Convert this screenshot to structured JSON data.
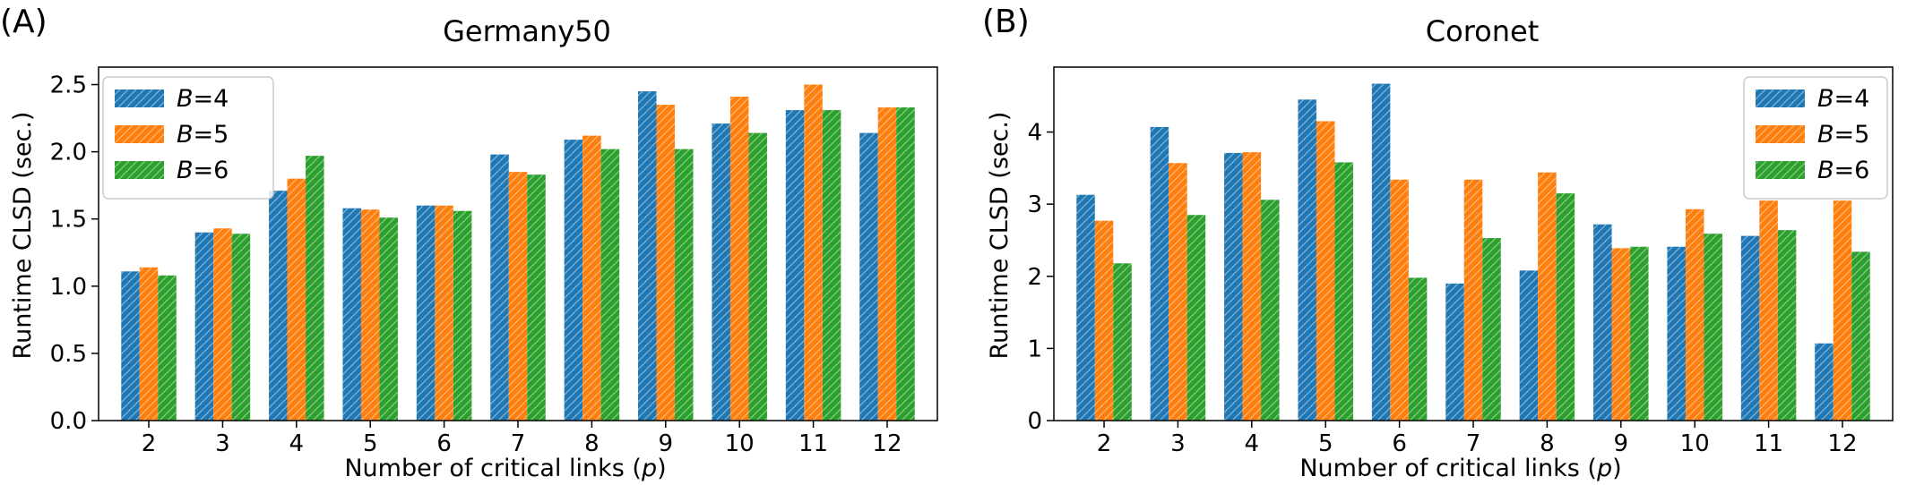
{
  "chart_data": [
    {
      "panel_label": "(A)",
      "type": "bar",
      "title": "Germany50",
      "xlabel": "Number of critical links (",
      "xlabel_var": "p",
      "xlabel_end": ")",
      "ylabel": "Runtime CLSD (sec.)",
      "categories": [
        "2",
        "3",
        "4",
        "5",
        "6",
        "7",
        "8",
        "9",
        "10",
        "11",
        "12"
      ],
      "ylim": [
        0,
        2.63
      ],
      "yticks": [
        0.0,
        0.5,
        1.0,
        1.5,
        2.0,
        2.5
      ],
      "ytick_labels": [
        "0.0",
        "0.5",
        "1.0",
        "1.5",
        "2.0",
        "2.5"
      ],
      "legend_position": "top-left",
      "grid": false,
      "series": [
        {
          "name": "B=4",
          "legend_var": "B",
          "legend_val": "=4",
          "color": "#1f77b4",
          "values": [
            1.11,
            1.4,
            1.71,
            1.58,
            1.6,
            1.98,
            2.09,
            2.45,
            2.21,
            2.31,
            2.14
          ]
        },
        {
          "name": "B=5",
          "legend_var": "B",
          "legend_val": "=5",
          "color": "#ff7f0e",
          "values": [
            1.14,
            1.43,
            1.8,
            1.57,
            1.6,
            1.85,
            2.12,
            2.35,
            2.41,
            2.5,
            2.33
          ]
        },
        {
          "name": "B=6",
          "legend_var": "B",
          "legend_val": "=6",
          "color": "#2ca02c",
          "values": [
            1.08,
            1.39,
            1.97,
            1.51,
            1.56,
            1.83,
            2.02,
            2.02,
            2.14,
            2.31,
            2.33
          ]
        }
      ]
    },
    {
      "panel_label": "(B)",
      "type": "bar",
      "title": "Coronet",
      "xlabel": "Number of critical links (",
      "xlabel_var": "p",
      "xlabel_end": ")",
      "ylabel": "Runtime CLSD (sec.)",
      "categories": [
        "2",
        "3",
        "4",
        "5",
        "6",
        "7",
        "8",
        "9",
        "10",
        "11",
        "12"
      ],
      "ylim": [
        0,
        4.9
      ],
      "yticks": [
        0,
        1,
        2,
        3,
        4
      ],
      "ytick_labels": [
        "0",
        "1",
        "2",
        "3",
        "4"
      ],
      "legend_position": "top-right",
      "grid": false,
      "series": [
        {
          "name": "B=4",
          "legend_var": "B",
          "legend_val": "=4",
          "color": "#1f77b4",
          "values": [
            3.13,
            4.07,
            3.71,
            4.45,
            4.67,
            1.9,
            2.08,
            2.72,
            2.41,
            2.56,
            1.07
          ]
        },
        {
          "name": "B=5",
          "legend_var": "B",
          "legend_val": "=5",
          "color": "#ff7f0e",
          "values": [
            2.77,
            3.57,
            3.72,
            4.15,
            3.34,
            3.34,
            3.44,
            2.39,
            2.93,
            3.05,
            3.05
          ]
        },
        {
          "name": "B=6",
          "legend_var": "B",
          "legend_val": "=6",
          "color": "#2ca02c",
          "values": [
            2.18,
            2.85,
            3.06,
            3.58,
            1.98,
            2.53,
            3.15,
            2.41,
            2.59,
            2.64,
            2.34
          ]
        }
      ]
    }
  ]
}
